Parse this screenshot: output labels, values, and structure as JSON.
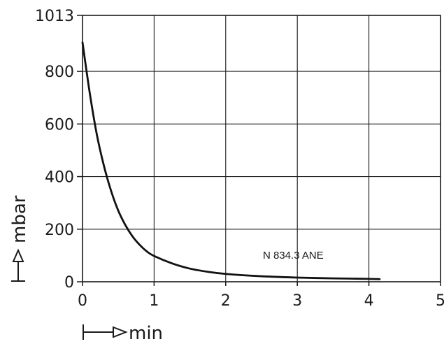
{
  "chart_data": {
    "type": "line",
    "title": "",
    "xlabel": "min",
    "ylabel": "mbar",
    "xlim": [
      0,
      5
    ],
    "ylim": [
      0,
      1013
    ],
    "grid": true,
    "x_ticks": [
      "0",
      "1",
      "2",
      "3",
      "4",
      "5"
    ],
    "y_ticks": [
      "0",
      "200",
      "400",
      "600",
      "800",
      "1013"
    ],
    "y_tick_values": [
      0,
      200,
      400,
      600,
      800,
      1013
    ],
    "annotation": "N 834.3 ANE",
    "series": [
      {
        "x": [
          0,
          0.1,
          0.2,
          0.3,
          0.4,
          0.5,
          0.6,
          0.7,
          0.8,
          0.9,
          1.0,
          1.25,
          1.5,
          1.75,
          2.0,
          2.5,
          3.0,
          3.5,
          4.0,
          4.15
        ],
        "y": [
          910,
          720,
          560,
          440,
          345,
          270,
          215,
          172,
          140,
          115,
          98,
          70,
          50,
          38,
          30,
          21,
          16,
          13,
          11,
          10
        ]
      }
    ]
  }
}
